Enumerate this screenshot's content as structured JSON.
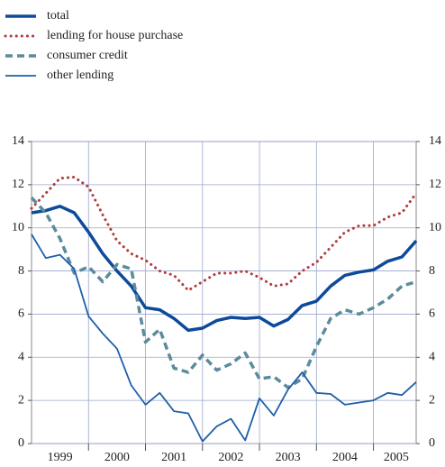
{
  "chart_data": {
    "type": "line",
    "x": [
      1999,
      1999.25,
      1999.5,
      1999.75,
      2000,
      2000.25,
      2000.5,
      2000.75,
      2001,
      2001.25,
      2001.5,
      2001.75,
      2002,
      2002.25,
      2002.5,
      2002.75,
      2003,
      2003.25,
      2003.5,
      2003.75,
      2004,
      2004.25,
      2004.5,
      2004.75,
      2005,
      2005.25,
      2005.5,
      2005.75
    ],
    "series": [
      {
        "name": "total",
        "color": "#0d4b9a",
        "style": "solid-thick",
        "values": [
          10.7,
          10.8,
          11.0,
          10.7,
          9.8,
          8.8,
          8.0,
          7.3,
          6.3,
          6.2,
          5.8,
          5.25,
          5.35,
          5.7,
          5.85,
          5.8,
          5.85,
          5.45,
          5.75,
          6.4,
          6.6,
          7.3,
          7.8,
          7.95,
          8.05,
          8.45,
          8.65,
          9.4
        ]
      },
      {
        "name": "lending for house purchase",
        "color": "#b03a3a",
        "style": "dotted",
        "values": [
          10.9,
          11.6,
          12.3,
          12.35,
          11.9,
          10.6,
          9.4,
          8.8,
          8.5,
          8.0,
          7.8,
          7.1,
          7.5,
          7.9,
          7.9,
          8.0,
          7.7,
          7.3,
          7.4,
          8.0,
          8.4,
          9.1,
          9.8,
          10.1,
          10.1,
          10.5,
          10.7,
          11.6
        ]
      },
      {
        "name": "consumer credit",
        "color": "#5b8c9c",
        "style": "dashed",
        "values": [
          11.4,
          10.7,
          9.5,
          7.9,
          8.2,
          7.5,
          8.3,
          8.1,
          4.7,
          5.3,
          3.5,
          3.3,
          4.1,
          3.4,
          3.7,
          4.2,
          3.0,
          3.1,
          2.6,
          3.0,
          4.5,
          5.8,
          6.2,
          6.0,
          6.3,
          6.7,
          7.3,
          7.5
        ]
      },
      {
        "name": "other lending",
        "color": "#1f5faa",
        "style": "solid-thin",
        "values": [
          9.7,
          8.6,
          8.75,
          8.1,
          5.9,
          5.1,
          4.4,
          2.7,
          1.8,
          2.35,
          1.5,
          1.4,
          0.1,
          0.8,
          1.15,
          0.15,
          2.1,
          1.3,
          2.5,
          3.3,
          2.35,
          2.3,
          1.8,
          1.9,
          2.0,
          2.35,
          2.25,
          2.85
        ]
      }
    ],
    "xlim": [
      1999,
      2005.75
    ],
    "xticks": [
      {
        "value": 1999.5,
        "label": "1999"
      },
      {
        "value": 2000.5,
        "label": "2000"
      },
      {
        "value": 2001.5,
        "label": "2001"
      },
      {
        "value": 2002.5,
        "label": "2002"
      },
      {
        "value": 2003.5,
        "label": "2003"
      },
      {
        "value": 2004.5,
        "label": "2004"
      },
      {
        "value": 2005.4,
        "label": "2005"
      }
    ],
    "xgrid": [
      2000,
      2001,
      2002,
      2003,
      2004,
      2005
    ],
    "ylim": [
      0,
      14
    ],
    "yticks": [
      0,
      2,
      4,
      6,
      8,
      10,
      12,
      14
    ],
    "y2lim": [
      0,
      14
    ],
    "y2ticks": [
      0,
      2,
      4,
      6,
      8,
      10,
      12,
      14
    ],
    "grid": true,
    "legend": "top-left"
  }
}
